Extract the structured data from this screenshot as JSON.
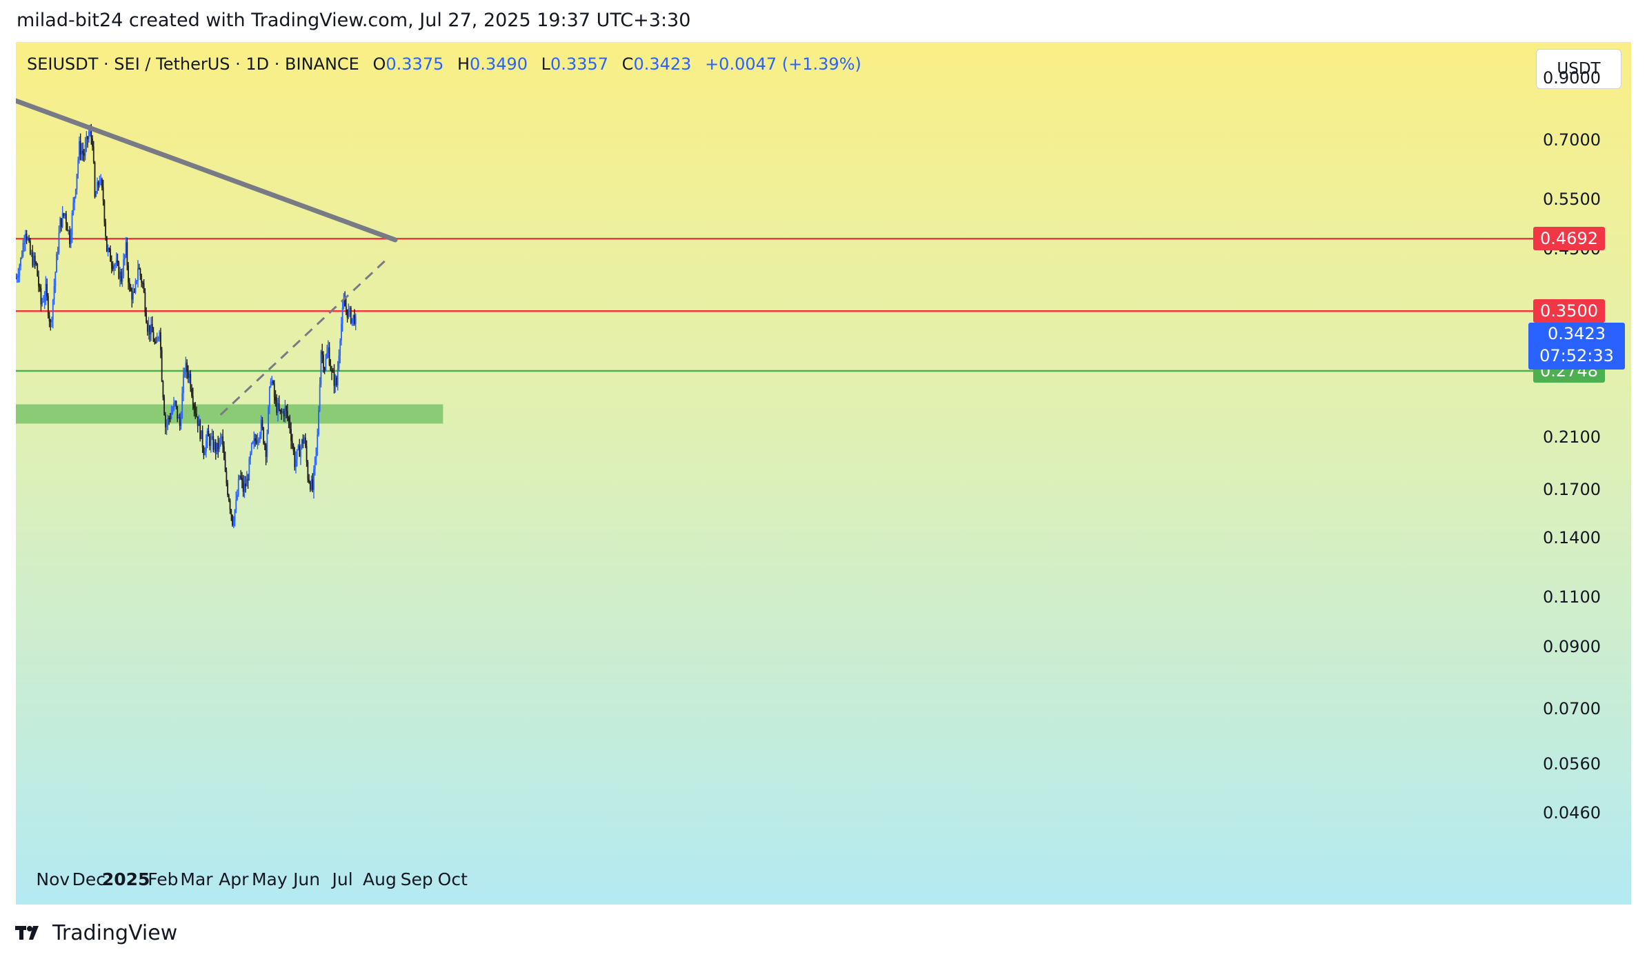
{
  "header": {
    "attribution": "milad-bit24 created with TradingView.com, Jul 27, 2025 19:37 UTC+3:30"
  },
  "legend": {
    "symbol": "SEIUSDT · SEI / TetherUS · 1D · BINANCE",
    "open_label": "O",
    "open": "0.3375",
    "high_label": "H",
    "high": "0.3490",
    "low_label": "L",
    "low": "0.3357",
    "close_label": "C",
    "close": "0.3423",
    "change": "+0.0047 (+1.39%)"
  },
  "currency_button": "USDT",
  "footer": {
    "brand": "TradingView"
  },
  "colors": {
    "bg_top": "#f9ef86",
    "bg_bottom": "#b4eaf2",
    "candle_up": "#2962ff",
    "candle_down": "#1e1e1e",
    "resistance": "#f23645",
    "support": "#4caf50",
    "support_zone": "#7dc46b",
    "trendline": "#787b86"
  },
  "chart_data": {
    "type": "candlestick",
    "scale": "log",
    "title": "SEIUSDT · SEI / TetherUS · 1D · BINANCE",
    "x_axis": {
      "labels": [
        {
          "text": "Nov",
          "day": 31
        },
        {
          "text": "Dec",
          "day": 61
        },
        {
          "text": "2025",
          "day": 92,
          "year": true
        },
        {
          "text": "Feb",
          "day": 123
        },
        {
          "text": "Mar",
          "day": 151
        },
        {
          "text": "Apr",
          "day": 182
        },
        {
          "text": "May",
          "day": 212
        },
        {
          "text": "Jun",
          "day": 243
        },
        {
          "text": "Jul",
          "day": 273
        },
        {
          "text": "Aug",
          "day": 304
        },
        {
          "text": "Sep",
          "day": 335
        },
        {
          "text": "Oct",
          "day": 365
        }
      ],
      "note": "day index counted from Oct 1, 2024"
    },
    "y_axis": {
      "ticks": [
        "0.9000",
        "0.7000",
        "0.5500",
        "0.4500",
        "0.2100",
        "0.1700",
        "0.1400",
        "0.1100",
        "0.0900",
        "0.0700",
        "0.0560",
        "0.0460"
      ],
      "range": [
        0.038,
        1.04
      ]
    },
    "levels": [
      {
        "name": "resistance-upper",
        "value": 0.4692,
        "label": "0.4692",
        "color": "#f23645"
      },
      {
        "name": "resistance-lower",
        "value": 0.35,
        "label": "0.3500",
        "color": "#f23645"
      },
      {
        "name": "support",
        "value": 0.2748,
        "label": "0.2748",
        "color": "#4caf50"
      }
    ],
    "support_zone": {
      "low": 0.222,
      "high": 0.24,
      "start_day": 0,
      "end_day": 357
    },
    "trendline": {
      "start": {
        "day": 0,
        "price": 0.82
      },
      "end": {
        "day": 317,
        "price": 0.467
      }
    },
    "dashed_trendline": {
      "start": {
        "day": 171,
        "price": 0.23
      },
      "end": {
        "day": 309,
        "price": 0.43
      }
    },
    "last_price": {
      "value": "0.3423",
      "countdown": "07:52:33",
      "price": 0.3423
    },
    "series": [
      {
        "d": 0,
        "p": 0.4
      },
      {
        "d": 4,
        "p": 0.43
      },
      {
        "d": 8,
        "p": 0.49
      },
      {
        "d": 12,
        "p": 0.44
      },
      {
        "d": 17,
        "p": 0.42
      },
      {
        "d": 21,
        "p": 0.36
      },
      {
        "d": 25,
        "p": 0.38
      },
      {
        "d": 29,
        "p": 0.33
      },
      {
        "d": 33,
        "p": 0.41
      },
      {
        "d": 37,
        "p": 0.5
      },
      {
        "d": 41,
        "p": 0.52
      },
      {
        "d": 45,
        "p": 0.47
      },
      {
        "d": 49,
        "p": 0.56
      },
      {
        "d": 53,
        "p": 0.68
      },
      {
        "d": 57,
        "p": 0.66
      },
      {
        "d": 61,
        "p": 0.72
      },
      {
        "d": 64,
        "p": 0.7
      },
      {
        "d": 66,
        "p": 0.55
      },
      {
        "d": 70,
        "p": 0.6
      },
      {
        "d": 73,
        "p": 0.55
      },
      {
        "d": 76,
        "p": 0.45
      },
      {
        "d": 80,
        "p": 0.43
      },
      {
        "d": 84,
        "p": 0.42
      },
      {
        "d": 88,
        "p": 0.4
      },
      {
        "d": 92,
        "p": 0.45
      },
      {
        "d": 95,
        "p": 0.38
      },
      {
        "d": 99,
        "p": 0.37
      },
      {
        "d": 102,
        "p": 0.42
      },
      {
        "d": 106,
        "p": 0.39
      },
      {
        "d": 110,
        "p": 0.33
      },
      {
        "d": 114,
        "p": 0.32
      },
      {
        "d": 117,
        "p": 0.3
      },
      {
        "d": 120,
        "p": 0.33
      },
      {
        "d": 122,
        "p": 0.27
      },
      {
        "d": 125,
        "p": 0.22
      },
      {
        "d": 129,
        "p": 0.23
      },
      {
        "d": 133,
        "p": 0.24
      },
      {
        "d": 137,
        "p": 0.22
      },
      {
        "d": 141,
        "p": 0.28
      },
      {
        "d": 145,
        "p": 0.27
      },
      {
        "d": 149,
        "p": 0.24
      },
      {
        "d": 153,
        "p": 0.22
      },
      {
        "d": 157,
        "p": 0.2
      },
      {
        "d": 160,
        "p": 0.21
      },
      {
        "d": 164,
        "p": 0.205
      },
      {
        "d": 168,
        "p": 0.2
      },
      {
        "d": 172,
        "p": 0.21
      },
      {
        "d": 175,
        "p": 0.18
      },
      {
        "d": 178,
        "p": 0.165
      },
      {
        "d": 181,
        "p": 0.15
      },
      {
        "d": 184,
        "p": 0.16
      },
      {
        "d": 187,
        "p": 0.18
      },
      {
        "d": 190,
        "p": 0.17
      },
      {
        "d": 193,
        "p": 0.175
      },
      {
        "d": 197,
        "p": 0.2
      },
      {
        "d": 201,
        "p": 0.21
      },
      {
        "d": 205,
        "p": 0.22
      },
      {
        "d": 209,
        "p": 0.2
      },
      {
        "d": 213,
        "p": 0.27
      },
      {
        "d": 217,
        "p": 0.24
      },
      {
        "d": 221,
        "p": 0.23
      },
      {
        "d": 225,
        "p": 0.235
      },
      {
        "d": 229,
        "p": 0.22
      },
      {
        "d": 233,
        "p": 0.19
      },
      {
        "d": 237,
        "p": 0.2
      },
      {
        "d": 241,
        "p": 0.21
      },
      {
        "d": 244,
        "p": 0.18
      },
      {
        "d": 248,
        "p": 0.17
      },
      {
        "d": 252,
        "p": 0.21
      },
      {
        "d": 255,
        "p": 0.3
      },
      {
        "d": 258,
        "p": 0.28
      },
      {
        "d": 261,
        "p": 0.3
      },
      {
        "d": 264,
        "p": 0.27
      },
      {
        "d": 268,
        "p": 0.26
      },
      {
        "d": 271,
        "p": 0.32
      },
      {
        "d": 274,
        "p": 0.36
      },
      {
        "d": 277,
        "p": 0.35
      },
      {
        "d": 281,
        "p": 0.34
      },
      {
        "d": 284,
        "p": 0.3423
      }
    ]
  }
}
